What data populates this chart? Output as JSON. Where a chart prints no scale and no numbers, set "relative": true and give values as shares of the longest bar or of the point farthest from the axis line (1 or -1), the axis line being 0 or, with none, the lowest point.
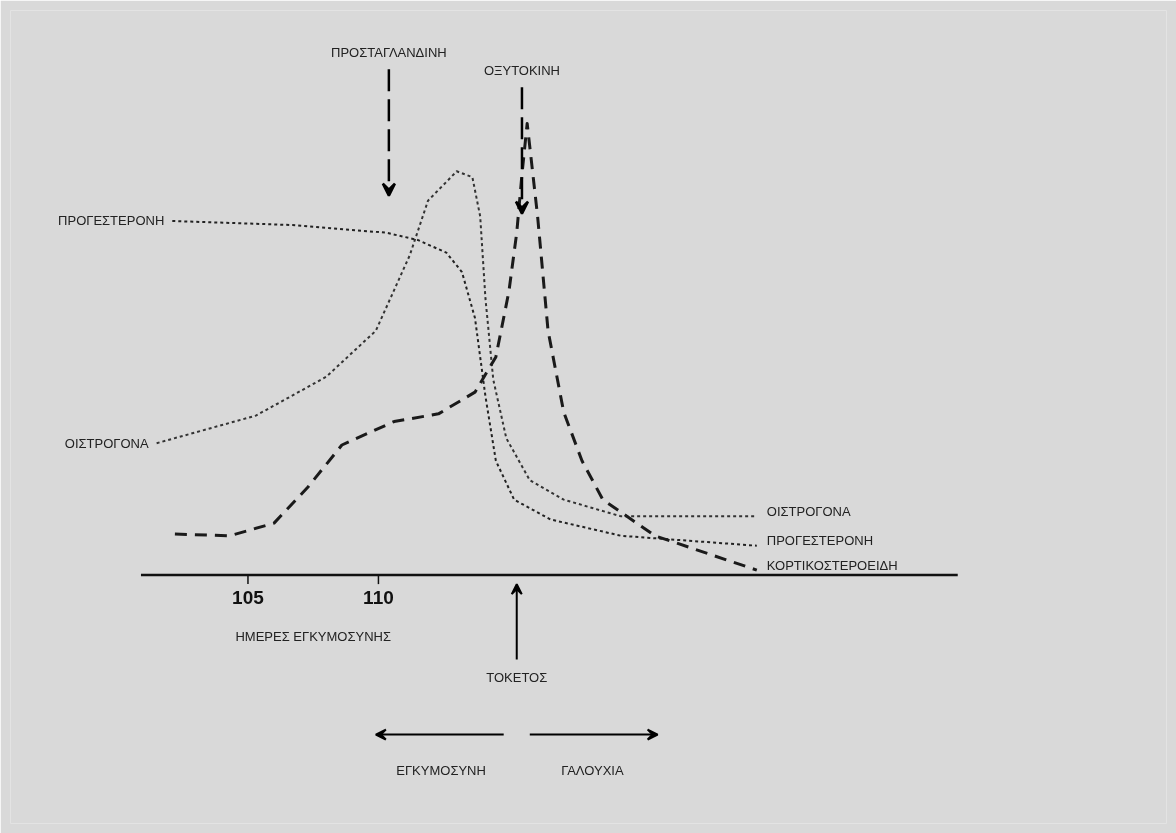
{
  "chart_data": {
    "type": "line",
    "relative": true,
    "xlabel": "ΗΜΕΡΕΣ ΕΓΚΥΜΟΣΥΝΗΣ",
    "xlim": [
      100.9,
      132.2
    ],
    "xticks": [
      105,
      110
    ],
    "tick_labels": "x",
    "grid": false,
    "marker": "none",
    "series": [
      {
        "name": "ΟΙΣΤΡΟΓΟΝΑ",
        "color": "#333333",
        "line_style": "dotted",
        "x": [
          101.5,
          105.3,
          108.0,
          109.9,
          111.2,
          111.9,
          113.0,
          113.6,
          113.9,
          114.1,
          114.4,
          114.9,
          115.8,
          117.1,
          119.3,
          124.5
        ],
        "values": [
          0.292,
          0.353,
          0.439,
          0.541,
          0.708,
          0.829,
          0.894,
          0.881,
          0.794,
          0.613,
          0.433,
          0.303,
          0.21,
          0.167,
          0.13,
          0.13
        ]
      },
      {
        "name": "ΠΡΟΓΕΣΤΕΡΟΝΗ",
        "color": "#222222",
        "line_style": "dotted",
        "x": [
          102.1,
          106.7,
          110.3,
          111.5,
          112.6,
          113.2,
          113.7,
          114.1,
          114.5,
          115.2,
          116.6,
          119.3,
          124.5
        ],
        "values": [
          0.784,
          0.775,
          0.758,
          0.742,
          0.714,
          0.671,
          0.569,
          0.396,
          0.253,
          0.167,
          0.123,
          0.087,
          0.065
        ]
      },
      {
        "name": "ΚΟΡΤΙΚΟΣΤΕΡΟΕΙΔΗ",
        "color": "#1a1a1a",
        "line_style": "dashed",
        "x": [
          102.2,
          104.3,
          106.0,
          107.3,
          108.6,
          110.6,
          112.3,
          113.7,
          114.5,
          115.0,
          115.3,
          115.5,
          115.7,
          116.1,
          116.5,
          117.1,
          117.8,
          118.6,
          120.6,
          124.5
        ],
        "values": [
          0.091,
          0.087,
          0.115,
          0.195,
          0.288,
          0.34,
          0.357,
          0.405,
          0.483,
          0.628,
          0.758,
          0.887,
          1.0,
          0.794,
          0.541,
          0.361,
          0.253,
          0.167,
          0.087,
          0.011
        ]
      }
    ],
    "annotations": [
      "ΠΡΟΣΤΑΓΛΑΝΔΙΝΗ",
      "ΟΞΥΤΟΚΙΝΗ",
      {
        "text": "ΠΡΟΓΕΣΤΕΡΟΝΗ",
        "x": 102.1,
        "y": 0.784
      },
      {
        "text": "ΟΙΣΤΡΟΓΟΝΑ",
        "x": 101.5,
        "y": 0.292
      },
      "ΤΟΚΕΤΟΣ",
      "ΕΓΚΥΜΟΣΥΝΗ",
      "ΓΑΛΟΥΧΙΑ"
    ]
  }
}
